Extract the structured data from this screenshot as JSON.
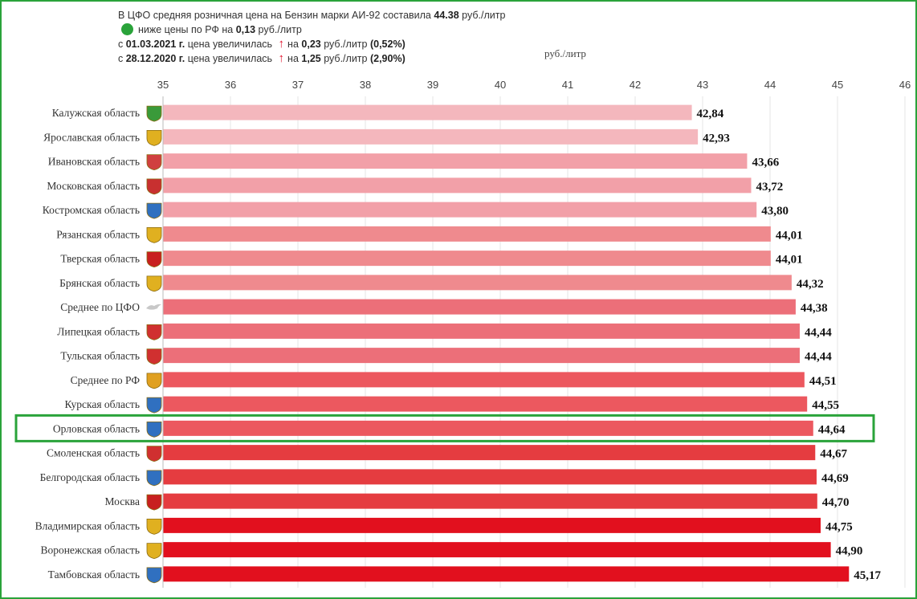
{
  "header": {
    "line1_prefix": "В ЦФО средняя розничная цена на Бензин марки АИ-92 составила",
    "line1_value": "44.38",
    "line1_unit": "руб./литр",
    "line2_status_color": "#2aa33a",
    "line2_prefix": "ниже цены по РФ на",
    "line2_value": "0,13",
    "line2_unit": "руб./литр",
    "line3_prefix": "с",
    "line3_date": "01.03.2021 г.",
    "line3_text": "цена увеличилась",
    "line3_on": "на",
    "line3_value": "0,23",
    "line3_unit": "руб./литр",
    "line3_percent": "(0,52%)",
    "line4_prefix": "с",
    "line4_date": "28.12.2020 г.",
    "line4_text": "цена увеличилась",
    "line4_on": "на",
    "line4_value": "1,25",
    "line4_unit": "руб./литр",
    "line4_percent": "(2,90%)",
    "arrow_icon": "arrow-up-icon",
    "arrow_color": "#e0102a"
  },
  "chart_data": {
    "type": "bar",
    "orientation": "horizontal",
    "xlabel": "руб./литр",
    "xlim": [
      35,
      46
    ],
    "xticks": [
      "35",
      "36",
      "37",
      "38",
      "39",
      "40",
      "41",
      "42",
      "43",
      "44",
      "45",
      "46"
    ],
    "grid": true,
    "highlight_category": "Орловская область",
    "highlight_color": "#2aa33a",
    "categories": [
      "Калужская область",
      "Ярославская область",
      "Ивановская область",
      "Московская область",
      "Костромская область",
      "Рязанская область",
      "Тверская область",
      "Брянская область",
      "Среднее по ЦФО",
      "Липецкая область",
      "Тульская область",
      "Среднее по РФ",
      "Курская область",
      "Орловская область",
      "Смоленская область",
      "Белгородская область",
      "Москва",
      "Владимирская область",
      "Воронежская область",
      "Тамбовская область"
    ],
    "values": [
      42.84,
      42.93,
      43.66,
      43.72,
      43.8,
      44.01,
      44.01,
      44.32,
      44.38,
      44.44,
      44.44,
      44.51,
      44.55,
      44.64,
      44.67,
      44.69,
      44.7,
      44.75,
      44.9,
      45.17
    ],
    "value_labels": [
      "42,84",
      "42,93",
      "43,66",
      "43,72",
      "43,80",
      "44,01",
      "44,01",
      "44,32",
      "44,38",
      "44,44",
      "44,44",
      "44,51",
      "44,55",
      "44,64",
      "44,67",
      "44,69",
      "44,70",
      "44,75",
      "44,90",
      "45,17"
    ],
    "bar_colors": [
      "#f4b7bd",
      "#f4b7bd",
      "#f2a0a8",
      "#f2a0a8",
      "#f2a0a8",
      "#ef8a8e",
      "#ef8a8e",
      "#ef8a8e",
      "#ec6f79",
      "#ec6f79",
      "#ec6f79",
      "#ec585f",
      "#ec585f",
      "#ec585f",
      "#e53c40",
      "#e53c40",
      "#e53c40",
      "#e2101e",
      "#e2101e",
      "#e2101e"
    ],
    "icons": [
      "coat-of-arms-icon",
      "coat-of-arms-icon",
      "coat-of-arms-icon",
      "coat-of-arms-icon",
      "coat-of-arms-icon",
      "coat-of-arms-icon",
      "coat-of-arms-icon",
      "coat-of-arms-icon",
      "dove-icon",
      "coat-of-arms-icon",
      "coat-of-arms-icon",
      "coat-of-arms-icon",
      "coat-of-arms-icon",
      "coat-of-arms-icon",
      "coat-of-arms-icon",
      "coat-of-arms-icon",
      "coat-of-arms-icon",
      "coat-of-arms-icon",
      "coat-of-arms-icon",
      "coat-of-arms-icon"
    ],
    "icon_colors": [
      "#3a9a3a",
      "#e0b020",
      "#d04040",
      "#c83030",
      "#3070c0",
      "#e0b020",
      "#c82020",
      "#e0b020",
      "#c8c8c8",
      "#d03030",
      "#d03030",
      "#e0a020",
      "#3070c0",
      "#3070c0",
      "#d03030",
      "#3070c0",
      "#c82020",
      "#e0b020",
      "#e0b020",
      "#3070c0"
    ]
  }
}
